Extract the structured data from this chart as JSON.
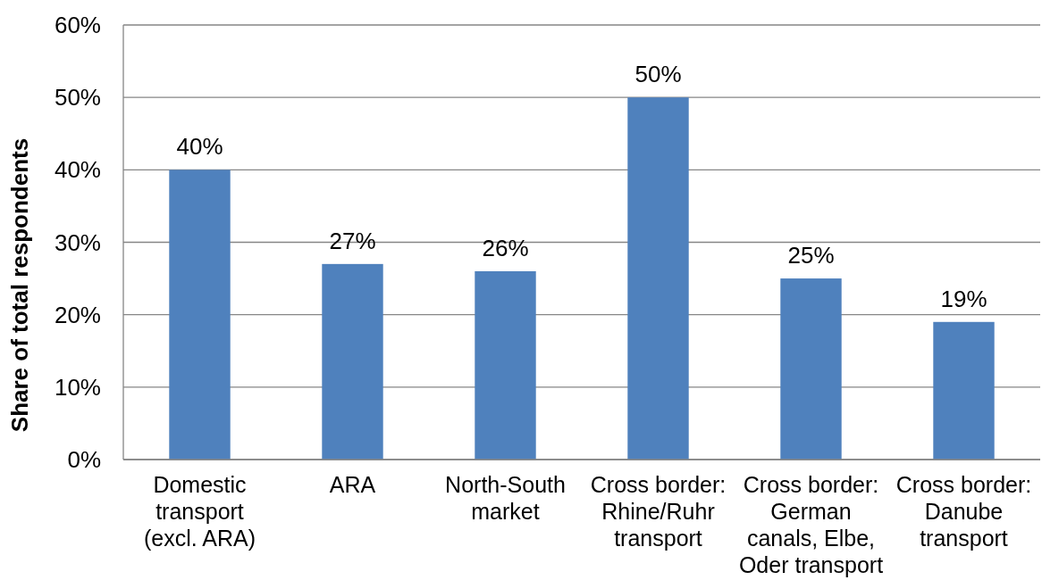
{
  "chart_data": {
    "type": "bar",
    "ylabel": "Share of total respondents",
    "categories": [
      "Domestic transport (excl. ARA)",
      "ARA",
      "North-South market",
      "Cross border: Rhine/Ruhr transport",
      "Cross border: German canals, Elbe, Oder transport",
      "Cross border: Danube transport"
    ],
    "values": [
      40,
      27,
      26,
      50,
      25,
      19
    ],
    "value_labels": [
      "40%",
      "27%",
      "26%",
      "50%",
      "25%",
      "19%"
    ],
    "color": "#4f81bd",
    "ylim": [
      0,
      60
    ],
    "yticks": [
      {
        "value": 0,
        "label": "0%"
      },
      {
        "value": 10,
        "label": "10%"
      },
      {
        "value": 20,
        "label": "20%"
      },
      {
        "value": 30,
        "label": "30%"
      },
      {
        "value": 40,
        "label": "40%"
      },
      {
        "value": 50,
        "label": "50%"
      },
      {
        "value": 60,
        "label": "60%"
      }
    ],
    "grid": "y"
  }
}
